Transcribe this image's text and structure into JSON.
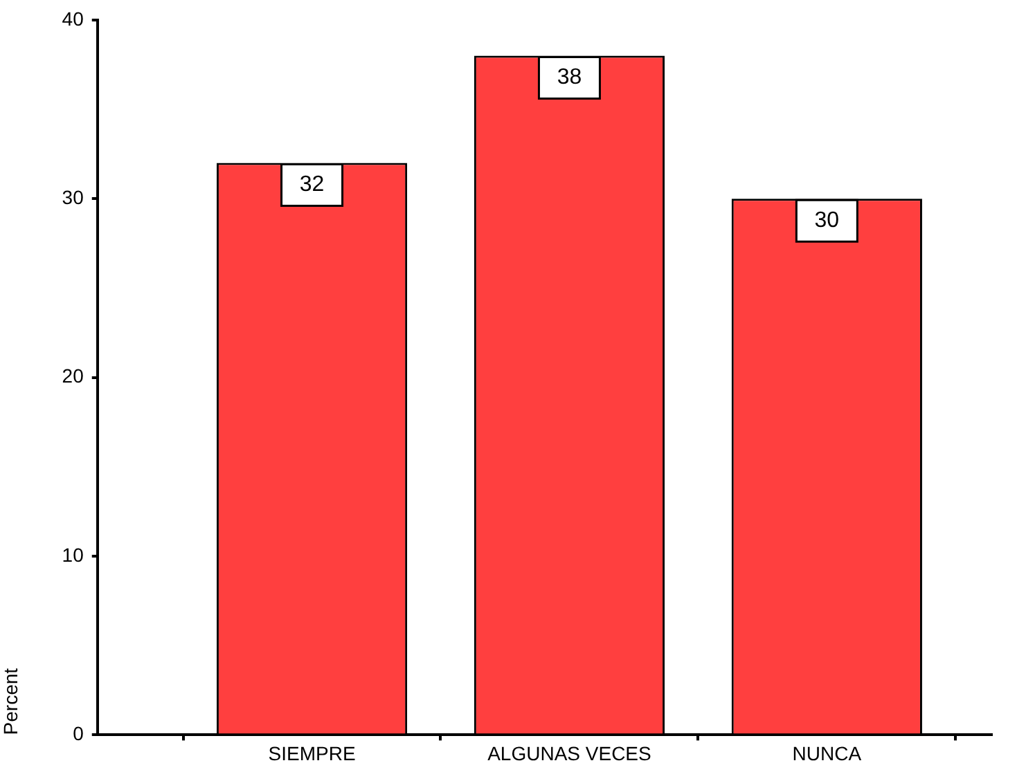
{
  "chart_data": {
    "type": "bar",
    "ylabel": "Percent",
    "categories": [
      "SIEMPRE",
      "ALGUNAS VECES",
      "NUNCA"
    ],
    "values": [
      32,
      38,
      30
    ],
    "color": "#ff3f3f",
    "ylim": [
      0,
      40
    ],
    "yticks": [
      0,
      10,
      20,
      30,
      40
    ],
    "grid": false,
    "legend": false,
    "data_labels": true
  }
}
